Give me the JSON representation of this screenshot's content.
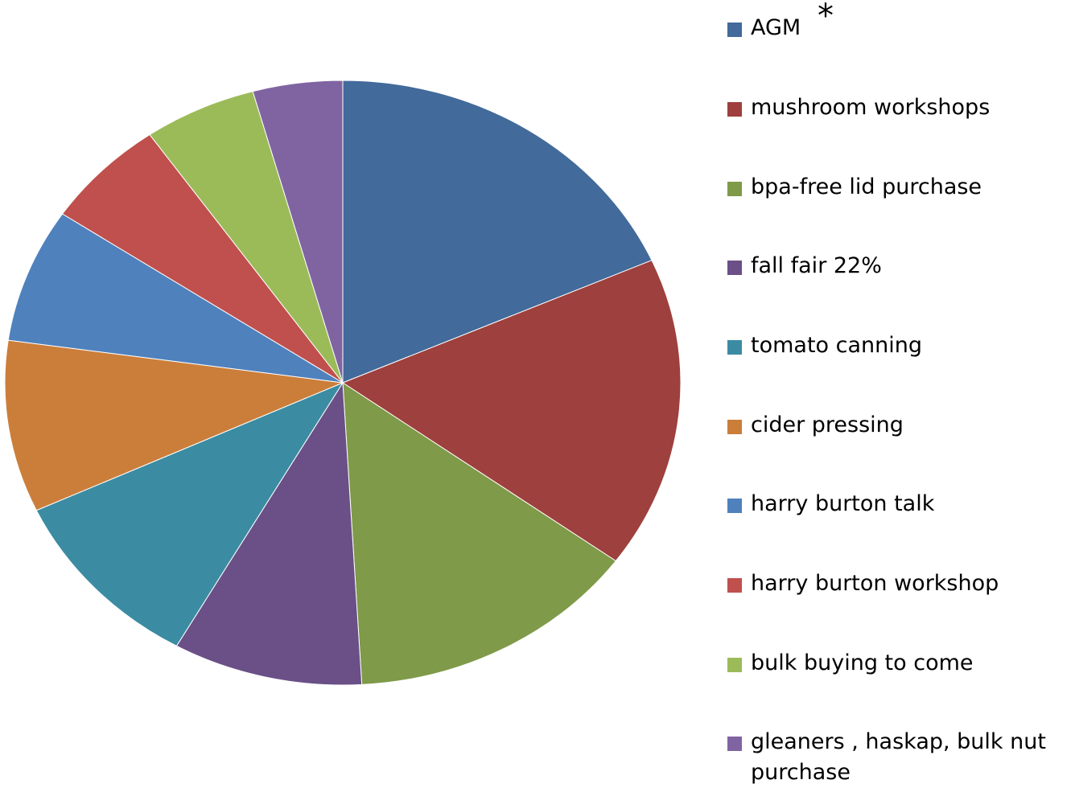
{
  "chart_data": {
    "type": "pie",
    "title": "",
    "annotation": "*",
    "slices": [
      {
        "label": "AGM",
        "value": 18.4,
        "color": "#426A9A"
      },
      {
        "label": "mushroom workshops",
        "value": 16.7,
        "color": "#9E403D"
      },
      {
        "label": "bpa-free lid purchase",
        "value": 14.1,
        "color": "#7F9A48"
      },
      {
        "label": "fall fair 22%",
        "value": 9.1,
        "color": "#6A5087"
      },
      {
        "label": "tomato canning",
        "value": 9.9,
        "color": "#3B8CA2"
      },
      {
        "label": "cider pressing",
        "value": 9.2,
        "color": "#CB7E3A"
      },
      {
        "label": "harry burton talk",
        "value": 7.2,
        "color": "#4F81BD"
      },
      {
        "label": "harry burton workshop",
        "value": 5.9,
        "color": "#C0504D"
      },
      {
        "label": "bulk buying to come",
        "value": 5.4,
        "color": "#9BBB59"
      },
      {
        "label": "gleaners , haskap, bulk nut purchase",
        "value": 4.3,
        "color": "#8064A2"
      }
    ],
    "legend": "right"
  }
}
